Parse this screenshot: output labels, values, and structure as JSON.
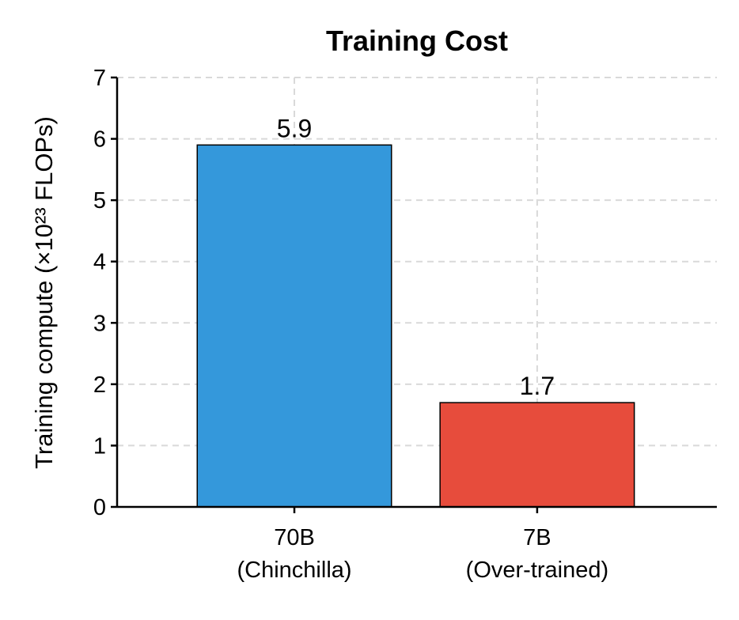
{
  "chart_data": {
    "type": "bar",
    "title": "Training Cost",
    "ylabel": "Training compute (×10²³ FLOPs)",
    "xlabel": "",
    "categories": [
      [
        "70B",
        "(Chinchilla)"
      ],
      [
        "7B",
        "(Over-trained)"
      ]
    ],
    "values": [
      5.9,
      1.7
    ],
    "data_labels": [
      "5.9",
      "1.7"
    ],
    "colors": [
      "#3498db",
      "#e74c3c"
    ],
    "ylim": [
      0,
      7
    ],
    "yticks": [
      "0",
      "1",
      "2",
      "3",
      "4",
      "5",
      "6",
      "7"
    ],
    "grid": true
  }
}
